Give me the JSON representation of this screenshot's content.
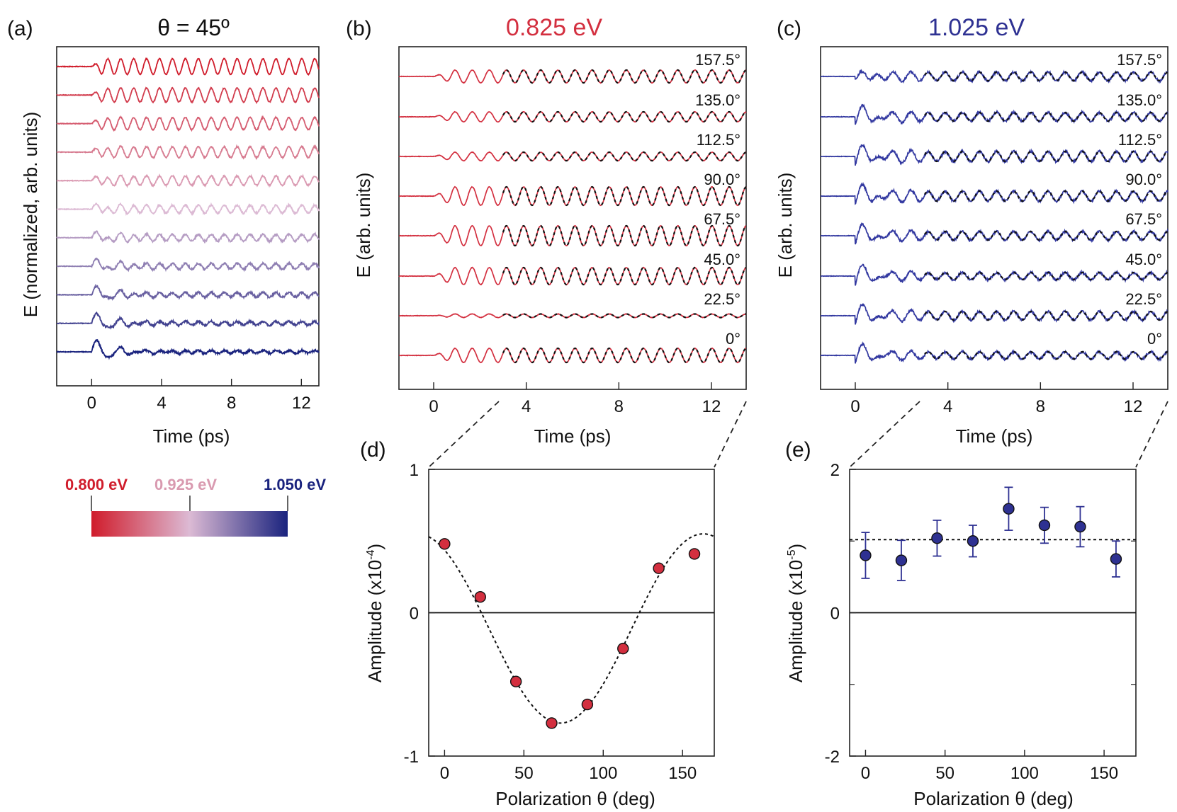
{
  "chart_data": [
    {
      "panel": "(a)",
      "type": "line",
      "title": "θ = 45º",
      "xlabel": "Time (ps)",
      "ylabel": "E (normalized, arb. units)",
      "xlim": [
        -2,
        13
      ],
      "xticks": [
        0,
        4,
        8,
        12
      ],
      "trace_energies_eV": [
        0.8,
        0.825,
        0.85,
        0.875,
        0.9,
        0.925,
        0.95,
        0.975,
        1.0,
        1.025,
        1.05
      ],
      "oscillation_period_ps": 0.74,
      "colorbar": {
        "labels": [
          "0.800 eV",
          "0.925 eV",
          "1.050 eV"
        ],
        "colors": [
          "#d01c2b",
          "#dcbad4",
          "#1a237e"
        ]
      }
    },
    {
      "panel": "(b)",
      "type": "line",
      "title": "0.825 eV",
      "title_color": "#d32f3f",
      "xlabel": "Time (ps)",
      "ylabel": "E (arb. units)",
      "xlim": [
        -1.5,
        13.5
      ],
      "xticks": [
        0,
        4,
        8,
        12
      ],
      "trace_labels": [
        "157.5°",
        "135.0°",
        "112.5°",
        "90.0°",
        "67.5°",
        "45.0°",
        "22.5°",
        "0°"
      ],
      "fit_start_ps": 3,
      "line_color": "#d32f3f"
    },
    {
      "panel": "(c)",
      "type": "line",
      "title": "1.025 eV",
      "title_color": "#2e3192",
      "xlabel": "Time (ps)",
      "ylabel": "E (arb. units)",
      "xlim": [
        -1.5,
        13.5
      ],
      "xticks": [
        0,
        4,
        8,
        12
      ],
      "trace_labels": [
        "157.5°",
        "135.0°",
        "112.5°",
        "90.0°",
        "67.5°",
        "45.0°",
        "22.5°",
        "0°"
      ],
      "fit_start_ps": 3,
      "line_color": "#3238a0"
    },
    {
      "panel": "(d)",
      "type": "scatter",
      "xlabel": "Polarization θ (deg)",
      "ylabel": "Amplitude (x10",
      "ylabel_exp": "-4",
      "xlim": [
        -10,
        170
      ],
      "ylim": [
        -1,
        1
      ],
      "xticks": [
        0,
        50,
        100,
        150
      ],
      "yticks": [
        -1,
        0,
        1
      ],
      "x": [
        0,
        22.5,
        45,
        67.5,
        90,
        112.5,
        135,
        157.5
      ],
      "y": [
        0.48,
        0.11,
        -0.48,
        -0.77,
        -0.64,
        -0.25,
        0.31,
        0.41
      ],
      "marker_color": "#d32f3f"
    },
    {
      "panel": "(e)",
      "type": "scatter",
      "xlabel": "Polarization θ (deg)",
      "ylabel": "Amplitude (x10",
      "ylabel_exp": "-5",
      "xlim": [
        -10,
        170
      ],
      "ylim": [
        -2,
        2
      ],
      "xticks": [
        0,
        50,
        100,
        150
      ],
      "yticks": [
        -2,
        0,
        2
      ],
      "x": [
        0,
        22.5,
        45,
        67.5,
        90,
        112.5,
        135,
        157.5
      ],
      "y": [
        0.8,
        0.73,
        1.04,
        1.0,
        1.45,
        1.22,
        1.2,
        0.75
      ],
      "yerr": [
        0.32,
        0.28,
        0.25,
        0.22,
        0.3,
        0.25,
        0.28,
        0.25
      ],
      "fit_level": 1.02,
      "marker_color": "#2e3192"
    }
  ]
}
